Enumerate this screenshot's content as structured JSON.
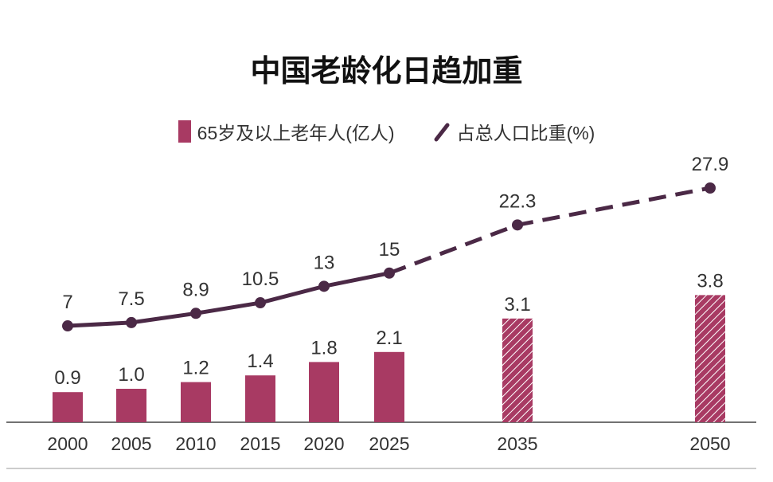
{
  "chart_data": {
    "type": "bar+line",
    "title": "中国老龄化日趋加重",
    "categories": [
      "2000",
      "2005",
      "2010",
      "2015",
      "2020",
      "2025",
      "2035",
      "2050"
    ],
    "series": [
      {
        "name": "65岁及以上老年人(亿人)",
        "type": "bar",
        "values": [
          0.9,
          1.0,
          1.2,
          1.4,
          1.8,
          2.1,
          3.1,
          3.8
        ],
        "color": "#a83a63",
        "projected_from": "2035",
        "projected_style": "hatched"
      },
      {
        "name": "占总人口比重(%)",
        "type": "line",
        "values": [
          7,
          7.5,
          8.9,
          10.5,
          13,
          15,
          22.3,
          27.9
        ],
        "color": "#4b2946",
        "projected_from": "2025",
        "projected_style": "dashed"
      }
    ],
    "grid": false,
    "legend_placement": "top"
  }
}
